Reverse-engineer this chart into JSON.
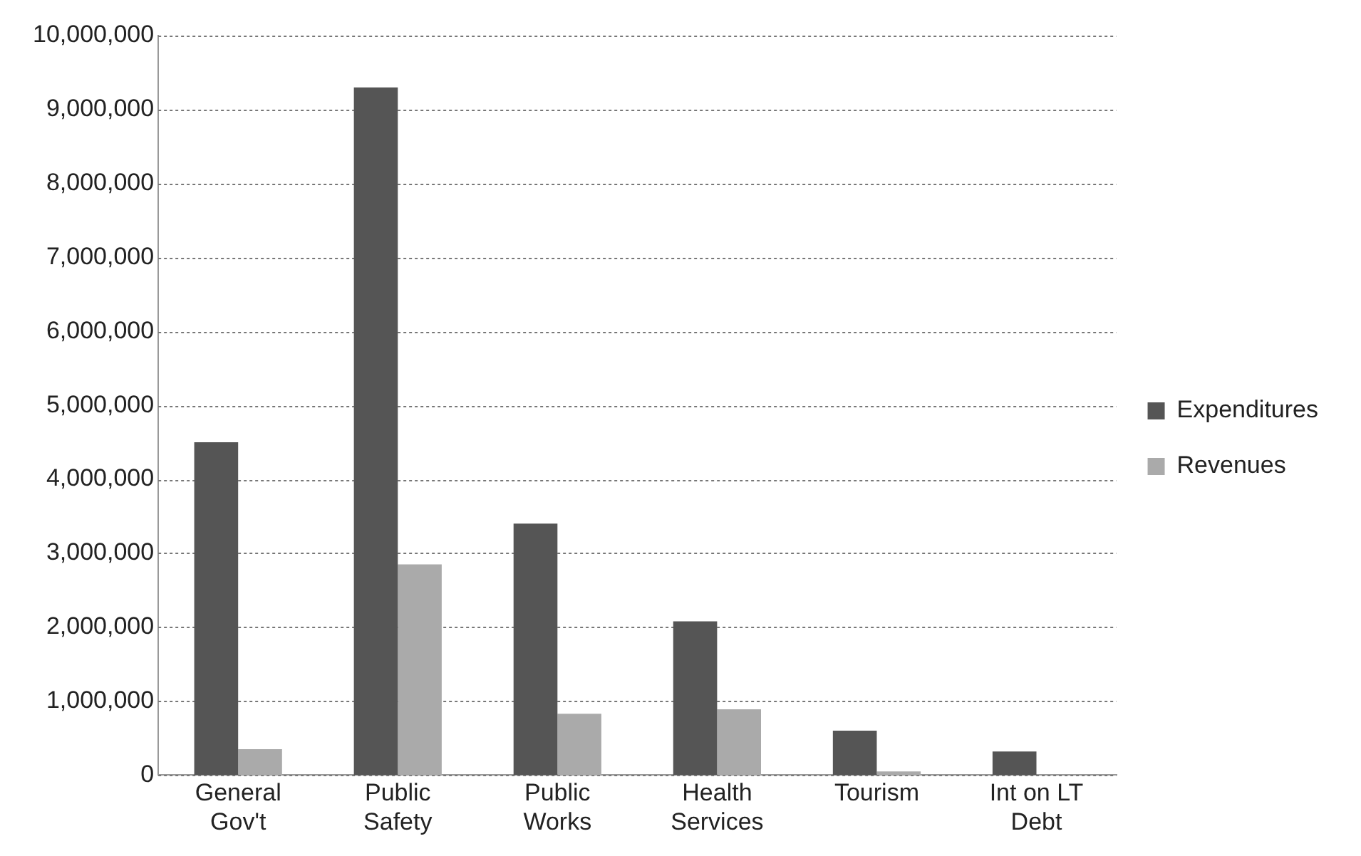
{
  "chart_data": {
    "type": "bar",
    "categories": [
      "General Gov't",
      "Public Safety",
      "Public Works",
      "Health Services",
      "Tourism",
      "Int on LT Debt"
    ],
    "series": [
      {
        "name": "Expenditures",
        "color": "#555555",
        "values": [
          4500000,
          9300000,
          3400000,
          2080000,
          600000,
          320000
        ]
      },
      {
        "name": "Revenues",
        "color": "#aaaaaa",
        "values": [
          350000,
          2850000,
          830000,
          890000,
          50000,
          0
        ]
      }
    ],
    "ylim": [
      0,
      10000000
    ],
    "yticks": [
      0,
      {
        "value": 1000000,
        "label": "1,000,000"
      },
      {
        "value": 2000000,
        "label": "2,000,000"
      },
      {
        "value": 3000000,
        "label": "3,000,000"
      },
      {
        "value": 4000000,
        "label": "4,000,000"
      },
      {
        "value": 5000000,
        "label": "5,000,000"
      },
      {
        "value": 6000000,
        "label": "6,000,000"
      },
      {
        "value": 7000000,
        "label": "7,000,000"
      },
      {
        "value": 8000000,
        "label": "8,000,000"
      },
      {
        "value": 9000000,
        "label": "9,000,000"
      },
      {
        "value": 10000000,
        "label": "10,000,000"
      }
    ],
    "grid": "y",
    "legend": "right"
  }
}
